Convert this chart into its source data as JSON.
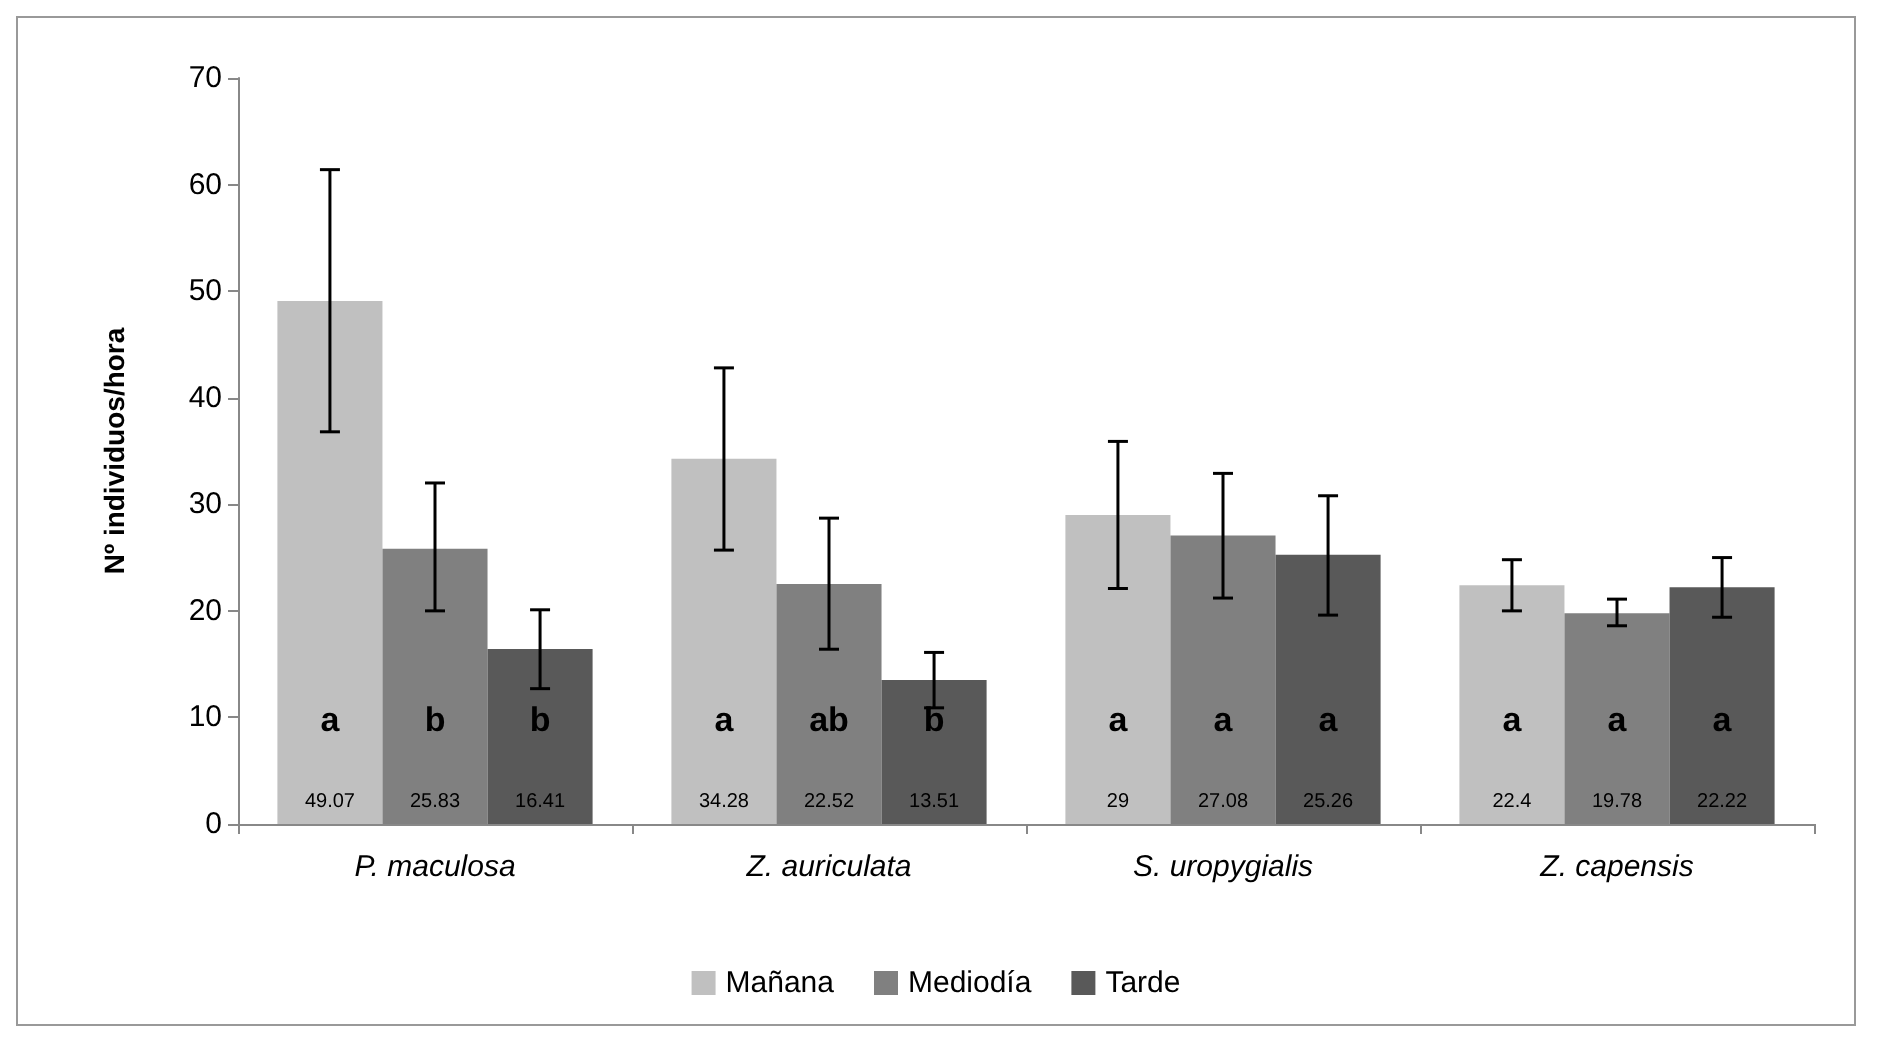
{
  "chart_data": {
    "type": "bar",
    "ylabel": "Nº individuos/hora",
    "categories": [
      "P. maculosa",
      "Z. auriculata",
      "S. uropygialis",
      "Z. capensis"
    ],
    "series": [
      {
        "name": "Mañana",
        "color": "#c0c0c0",
        "values": [
          49.07,
          34.28,
          29,
          22.4
        ],
        "value_labels": [
          "49.07",
          "34.28",
          "29",
          "22.4"
        ],
        "errors": [
          [
            36.8,
            61.4
          ],
          [
            25.7,
            42.8
          ],
          [
            22.1,
            35.9
          ],
          [
            20,
            24.8
          ]
        ]
      },
      {
        "name": "Mediodía",
        "color": "#808080",
        "values": [
          25.83,
          22.52,
          27.08,
          19.78
        ],
        "value_labels": [
          "25.83",
          "22.52",
          "27.08",
          "19.78"
        ],
        "errors": [
          [
            20,
            32
          ],
          [
            16.4,
            28.7
          ],
          [
            21.2,
            32.9
          ],
          [
            18.6,
            21.1
          ]
        ]
      },
      {
        "name": "Tarde",
        "color": "#595959",
        "values": [
          16.41,
          13.51,
          25.26,
          22.22
        ],
        "value_labels": [
          "16.41",
          "13.51",
          "25.26",
          "22.22"
        ],
        "errors": [
          [
            12.7,
            20.1
          ],
          [
            10.9,
            16.1
          ],
          [
            19.6,
            30.8
          ],
          [
            19.4,
            25
          ]
        ]
      }
    ],
    "annotations": [
      "a",
      "b",
      "b",
      "a",
      "ab",
      "b",
      "a",
      "a",
      "a",
      "a",
      "a",
      "a"
    ],
    "ylim": [
      0,
      70
    ],
    "yticks": [
      0,
      10,
      20,
      30,
      40,
      50,
      60,
      70
    ],
    "grid": false,
    "legend": "bottom"
  }
}
